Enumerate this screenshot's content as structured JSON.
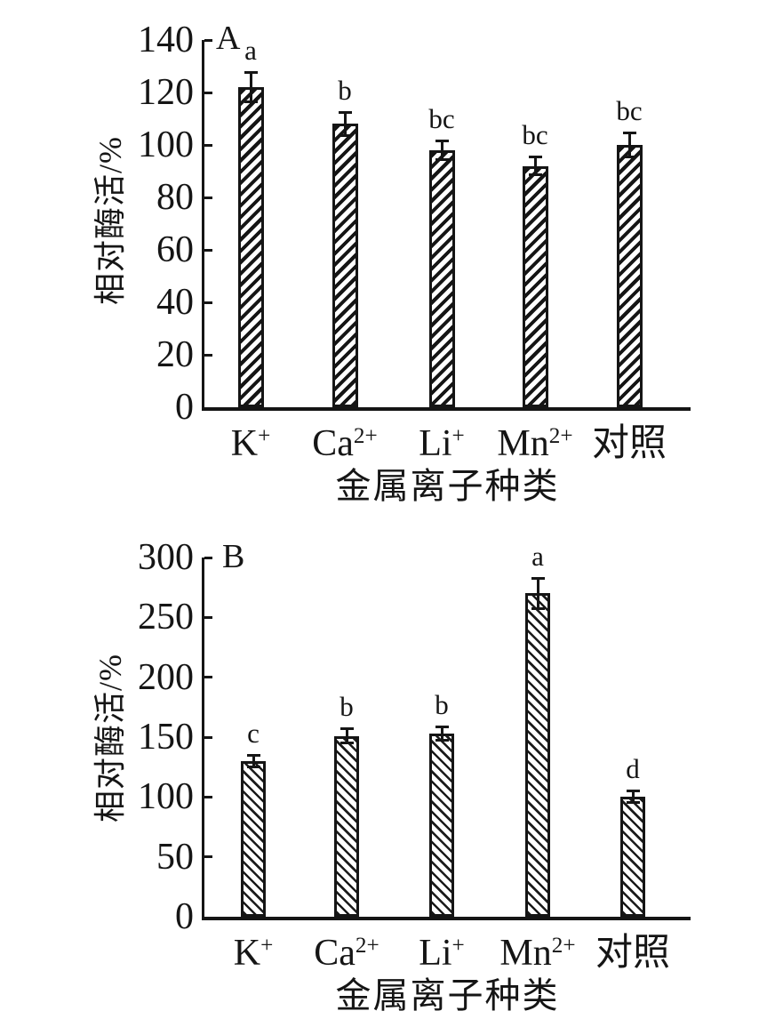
{
  "figure": {
    "background": "#ffffff",
    "ink_color": "#151515"
  },
  "chart_data": [
    {
      "type": "bar",
      "panel_label": "A",
      "ylabel": "相对酶活/%",
      "xlabel": "金属离子种类",
      "ylim": [
        0,
        140
      ],
      "yticks": [
        0,
        20,
        40,
        60,
        80,
        100,
        120,
        140
      ],
      "grid": false,
      "legend": "none",
      "hatch": "forward-diagonal",
      "categories": [
        "K+",
        "Ca2+",
        "Li+",
        "Mn2+",
        "对照"
      ],
      "categories_rich": [
        {
          "base": "K",
          "sup": "+"
        },
        {
          "base": "Ca",
          "sup": "2+"
        },
        {
          "base": "Li",
          "sup": "+"
        },
        {
          "base": "Mn",
          "sup": "2+"
        },
        {
          "base": "对照",
          "sup": ""
        }
      ],
      "values": [
        122,
        108,
        98,
        92,
        100
      ],
      "errors": [
        6,
        5,
        4,
        4,
        5
      ],
      "sig_letters": [
        "a",
        "b",
        "bc",
        "bc",
        "bc"
      ]
    },
    {
      "type": "bar",
      "panel_label": "B",
      "ylabel": "相对酶活/%",
      "xlabel": "金属离子种类",
      "ylim": [
        0,
        300
      ],
      "yticks": [
        0,
        50,
        100,
        150,
        200,
        250,
        300
      ],
      "grid": false,
      "legend": "none",
      "hatch": "back-diagonal",
      "categories": [
        "K+",
        "Ca2+",
        "Li+",
        "Mn2+",
        "对照"
      ],
      "categories_rich": [
        {
          "base": "K",
          "sup": "+"
        },
        {
          "base": "Ca",
          "sup": "2+"
        },
        {
          "base": "Li",
          "sup": "+"
        },
        {
          "base": "Mn",
          "sup": "2+"
        },
        {
          "base": "对照",
          "sup": ""
        }
      ],
      "values": [
        130,
        151,
        153,
        270,
        100
      ],
      "errors": [
        6,
        7,
        7,
        14,
        6
      ],
      "sig_letters": [
        "c",
        "b",
        "b",
        "a",
        "d"
      ]
    }
  ]
}
